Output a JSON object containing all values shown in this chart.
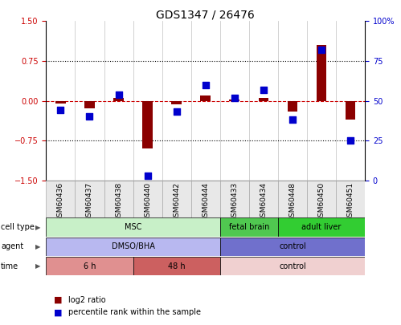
{
  "title": "GDS1347 / 26476",
  "samples": [
    "GSM60436",
    "GSM60437",
    "GSM60438",
    "GSM60440",
    "GSM60442",
    "GSM60444",
    "GSM60433",
    "GSM60434",
    "GSM60448",
    "GSM60450",
    "GSM60451"
  ],
  "log2_ratio": [
    -0.05,
    -0.15,
    0.05,
    -0.9,
    -0.07,
    0.1,
    0.02,
    0.05,
    -0.2,
    1.05,
    -0.35
  ],
  "percentile_rank": [
    44,
    40,
    54,
    3,
    43,
    60,
    52,
    57,
    38,
    82,
    25
  ],
  "ylim_left": [
    -1.5,
    1.5
  ],
  "ylim_right": [
    0,
    100
  ],
  "yticks_left": [
    -1.5,
    -0.75,
    0.0,
    0.75,
    1.5
  ],
  "yticks_right": [
    0,
    25,
    50,
    75,
    100
  ],
  "hlines": [
    0.75,
    -0.75
  ],
  "bar_color": "#8B0000",
  "dot_color": "#0000CD",
  "zero_line_color": "#CC0000",
  "cell_type_rows": [
    {
      "label": "MSC",
      "start": 0,
      "end": 6,
      "color": "#c8f0c8",
      "text_color": "black"
    },
    {
      "label": "fetal brain",
      "start": 6,
      "end": 8,
      "color": "#50c850",
      "text_color": "black"
    },
    {
      "label": "adult liver",
      "start": 8,
      "end": 11,
      "color": "#32cd32",
      "text_color": "black"
    }
  ],
  "agent_rows": [
    {
      "label": "DMSO/BHA",
      "start": 0,
      "end": 6,
      "color": "#b8b8f0",
      "text_color": "black"
    },
    {
      "label": "control",
      "start": 6,
      "end": 11,
      "color": "#7070cc",
      "text_color": "black"
    }
  ],
  "time_rows": [
    {
      "label": "6 h",
      "start": 0,
      "end": 3,
      "color": "#e09090",
      "text_color": "black"
    },
    {
      "label": "48 h",
      "start": 3,
      "end": 6,
      "color": "#cc6060",
      "text_color": "black"
    },
    {
      "label": "control",
      "start": 6,
      "end": 11,
      "color": "#f0d0d0",
      "text_color": "black"
    }
  ],
  "row_labels": [
    "cell type",
    "agent",
    "time"
  ],
  "legend_items": [
    {
      "label": "log2 ratio",
      "color": "#8B0000"
    },
    {
      "label": "percentile rank within the sample",
      "color": "#0000CD"
    }
  ],
  "bar_width": 0.35,
  "dot_size": 28,
  "annotation_fontsize": 6.5,
  "tick_fontsize": 7,
  "title_fontsize": 10,
  "label_fontsize": 7,
  "bg_color": "#e8e8e8"
}
